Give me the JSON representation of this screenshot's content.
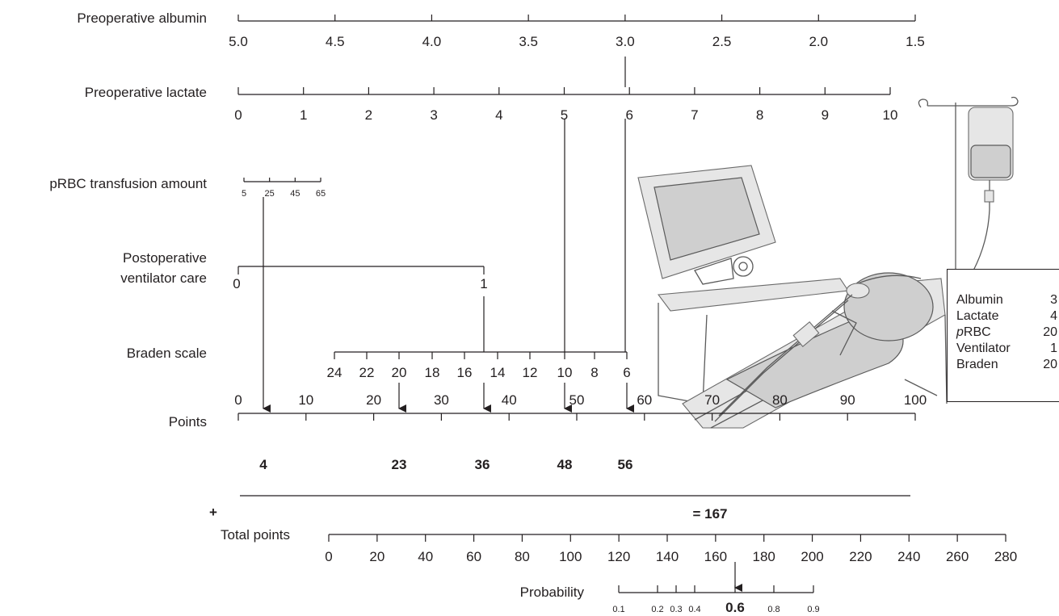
{
  "rows": {
    "albumin": {
      "label": "Preoperative albumin",
      "ticks": [
        "5.0",
        "4.5",
        "4.0",
        "3.5",
        "3.0",
        "2.5",
        "2.0",
        "1.5"
      ]
    },
    "lactate": {
      "label": "Preoperative lactate",
      "ticks": [
        "0",
        "1",
        "2",
        "3",
        "4",
        "5",
        "6",
        "7",
        "8",
        "9",
        "10"
      ]
    },
    "prbc": {
      "label": "pRBC transfusion amount",
      "ticks": [
        "5",
        "25",
        "45",
        "65"
      ]
    },
    "ventilator": {
      "label_line1": "Postoperative",
      "label_line2": "ventilator care",
      "ticks": [
        "0",
        "1"
      ]
    },
    "braden": {
      "label": "Braden scale",
      "ticks": [
        "24",
        "22",
        "20",
        "18",
        "16",
        "14",
        "12",
        "10",
        "8",
        "6"
      ]
    },
    "points": {
      "label": "Points",
      "ticks": [
        "0",
        "10",
        "20",
        "30",
        "40",
        "50",
        "60",
        "70",
        "80",
        "90",
        "100"
      ]
    },
    "total": {
      "label": "Total points",
      "ticks": [
        "0",
        "20",
        "40",
        "60",
        "80",
        "100",
        "120",
        "140",
        "160",
        "180",
        "200",
        "220",
        "240",
        "260",
        "280"
      ]
    },
    "probability": {
      "label": "Probability",
      "ticks": [
        "0.1",
        "0.2",
        "0.3",
        "0.4",
        "0.6",
        "0.8",
        "0.9"
      ]
    }
  },
  "example": {
    "point_values": [
      "4",
      "23",
      "36",
      "48",
      "56"
    ],
    "plus": "+",
    "sum_label": "= 167",
    "probability_value": "0.6"
  },
  "legend": {
    "items": [
      {
        "name": "Albumin",
        "value": "3"
      },
      {
        "name": "Lactate",
        "value": "4"
      },
      {
        "name_italic": "p",
        "name": "RBC",
        "value": "20"
      },
      {
        "name": "Ventilator",
        "value": "1"
      },
      {
        "name": "Braden",
        "value": "20"
      }
    ]
  },
  "illustration": "icu-patient-with-ventilator-and-iv-drip"
}
